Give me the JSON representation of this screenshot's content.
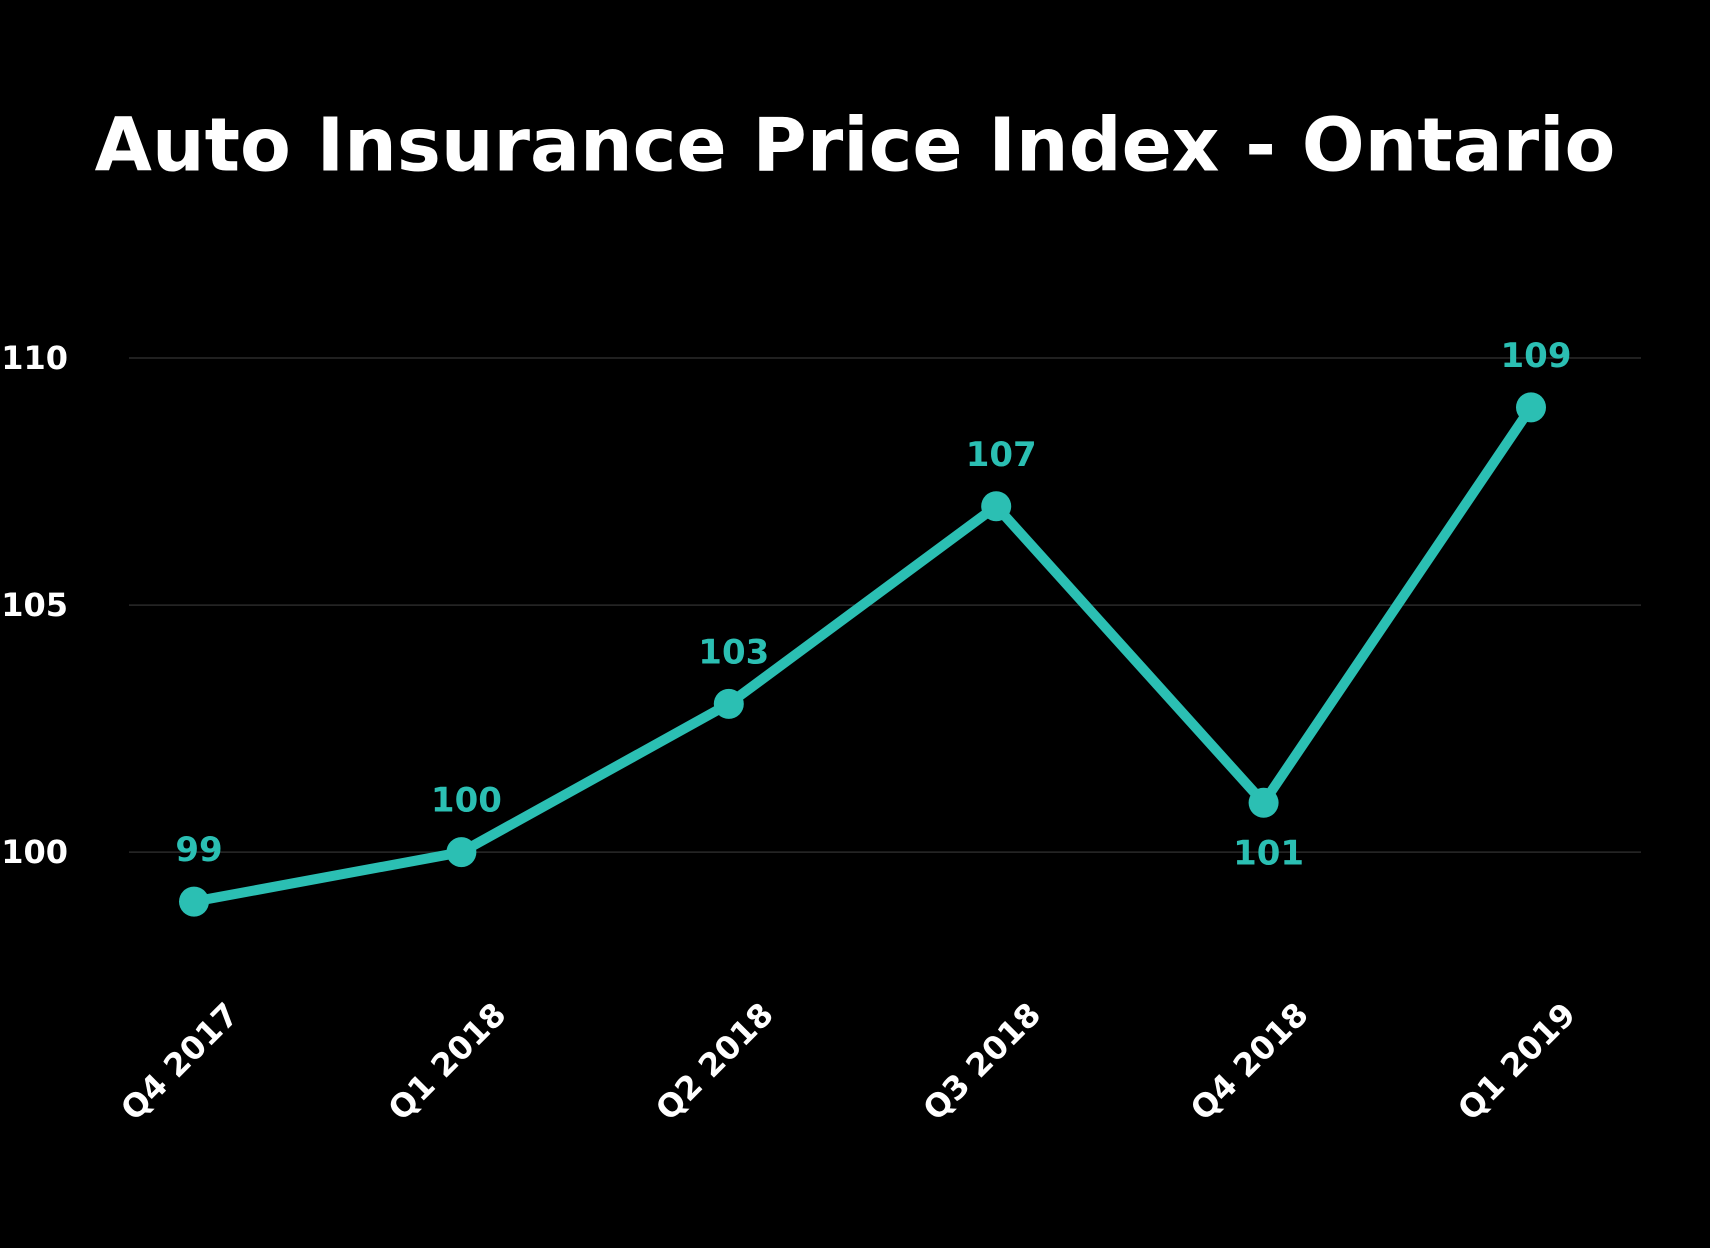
{
  "chart_data": {
    "type": "line",
    "title": "Auto Insurance Price Index - Ontario",
    "categories": [
      "Q4 2017",
      "Q1 2018",
      "Q2 2018",
      "Q3 2018",
      "Q4 2018",
      "Q1 2019"
    ],
    "series": [
      {
        "name": "Auto Insurance Price Index",
        "color": "#2bbfb3",
        "values": [
          99,
          100,
          103,
          107,
          101,
          109
        ]
      }
    ],
    "ylim": [
      98,
      110
    ],
    "yticks": [
      100,
      105,
      110
    ],
    "grid": true
  }
}
